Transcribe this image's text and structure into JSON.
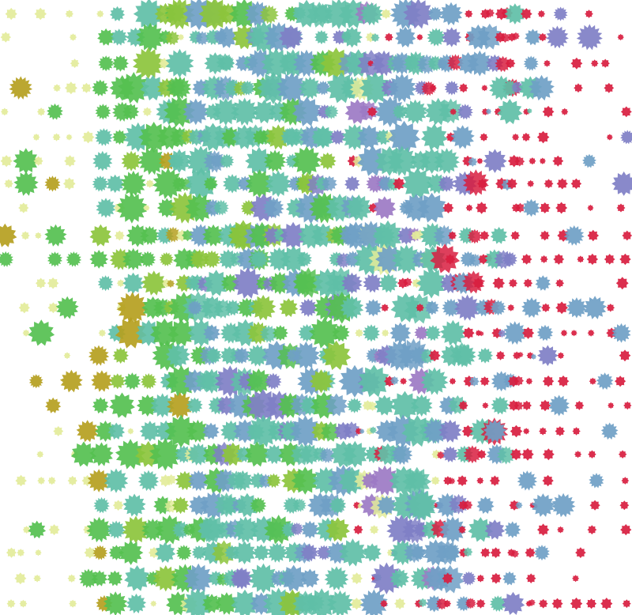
{
  "artwork": {
    "description_colors": {
      "background": "#ffffff",
      "pale_yellow": "#e3ec9a",
      "olive": "#b5a020",
      "green": "#55c050",
      "lime": "#8cc43c",
      "teal": "#5fbfa7",
      "steel_blue": "#6f9fc6",
      "violet": "#7f7fc6",
      "purple": "#9c79c4",
      "red": "#d81d3f"
    },
    "palette_order": [
      "pale_yellow",
      "olive",
      "green",
      "lime",
      "teal",
      "steel_blue",
      "violet",
      "purple",
      "red"
    ],
    "rows": 25,
    "columns": 40,
    "seed": 17
  }
}
